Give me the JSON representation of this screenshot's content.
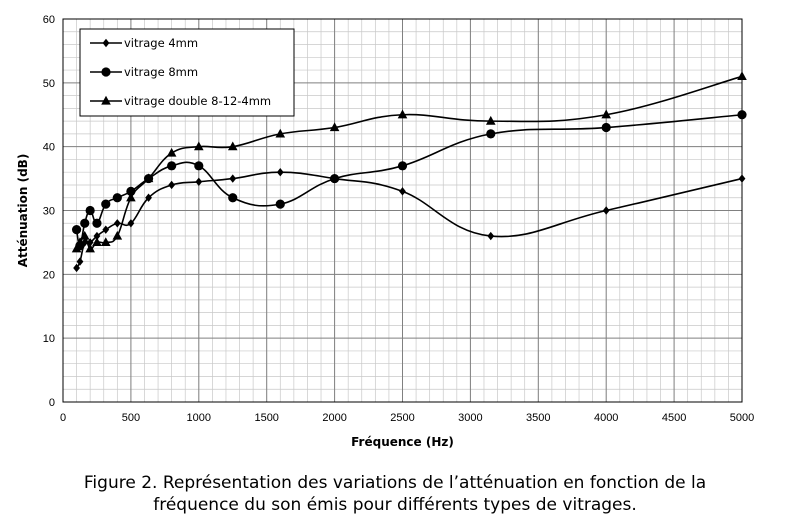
{
  "chart_data": {
    "type": "line",
    "xlabel": "Fréquence (Hz)",
    "ylabel": "Atténuation (dB)",
    "xlim": [
      0,
      5000
    ],
    "ylim": [
      0,
      60
    ],
    "xticks": [
      0,
      500,
      1000,
      1500,
      2000,
      2500,
      3000,
      3500,
      4000,
      4500,
      5000
    ],
    "yticks": [
      0,
      10,
      20,
      30,
      40,
      50,
      60
    ],
    "grid": true,
    "minor_grid": true,
    "smooth_lines": true,
    "legend_position": "top-left",
    "series": [
      {
        "name": "vitrage 4mm",
        "marker": "diamond",
        "x": [
          100,
          125,
          160,
          200,
          250,
          315,
          400,
          500,
          630,
          800,
          1000,
          1250,
          1600,
          2000,
          2500,
          3150,
          4000,
          5000
        ],
        "y": [
          21,
          22,
          25,
          25,
          26,
          27,
          28,
          28,
          32,
          34,
          34.5,
          35,
          36,
          35,
          33,
          26,
          30,
          35
        ]
      },
      {
        "name": "vitrage 8mm",
        "marker": "circle",
        "x": [
          100,
          125,
          160,
          200,
          250,
          315,
          400,
          500,
          630,
          800,
          1000,
          1250,
          1600,
          2000,
          2500,
          3150,
          4000,
          5000
        ],
        "y": [
          27,
          24.5,
          28,
          30,
          28,
          31,
          32,
          33,
          35,
          37,
          37,
          32,
          31,
          35,
          37,
          42,
          43,
          45
        ]
      },
      {
        "name": "vitrage double 8-12-4mm",
        "marker": "triangle",
        "x": [
          100,
          125,
          160,
          200,
          250,
          315,
          400,
          500,
          630,
          800,
          1000,
          1250,
          1600,
          2000,
          2500,
          3150,
          4000,
          5000
        ],
        "y": [
          24,
          25,
          26,
          24,
          25,
          25,
          26,
          32,
          35,
          39,
          40,
          40,
          42,
          43,
          45,
          44,
          45,
          51
        ]
      }
    ]
  },
  "caption": {
    "line1": "Figure 2. Représentation des variations de l’atténuation en fonction de la",
    "line2": "fréquence du son émis pour différents types de vitrages."
  }
}
